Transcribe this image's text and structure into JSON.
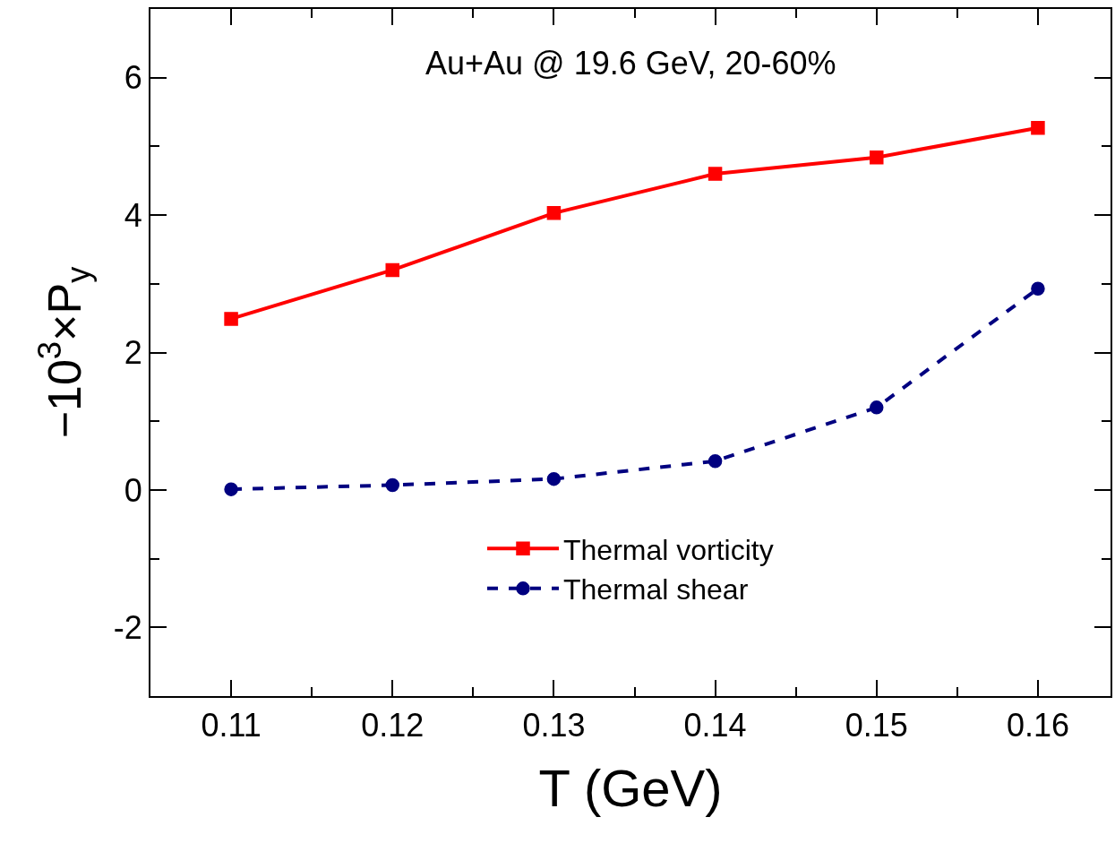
{
  "chart_data": {
    "type": "line",
    "xlabel": "T (GeV)",
    "ylabel": "−10$^{3}$×P$_{y}$",
    "annotations": [
      "Au+Au @ 19.6 GeV, 20-60%"
    ],
    "x": [
      0.11,
      0.12,
      0.13,
      0.14,
      0.15,
      0.16
    ],
    "series": [
      {
        "name": "Thermal vorticity",
        "color": "#ff0000",
        "marker": "square",
        "line_style": "solid",
        "values": [
          2.49,
          3.2,
          4.03,
          4.6,
          4.84,
          5.27
        ]
      },
      {
        "name": "Thermal shear",
        "color": "#000080",
        "marker": "circle",
        "line_style": "dashed",
        "values": [
          0.01,
          0.07,
          0.16,
          0.42,
          1.2,
          2.93
        ]
      }
    ],
    "xlim": [
      0.105,
      0.1645
    ],
    "xticks": [
      0.11,
      0.12,
      0.13,
      0.14,
      0.15,
      0.16,
      {
        "value": 0.105,
        "label": null
      },
      {
        "value": 0.115,
        "label": null
      },
      {
        "value": 0.125,
        "label": null
      },
      {
        "value": 0.135,
        "label": null
      },
      {
        "value": 0.145,
        "label": null
      },
      {
        "value": 0.155,
        "label": null
      }
    ],
    "ylim": [
      -3,
      7
    ],
    "yticks": [
      -2,
      0,
      2,
      4,
      6,
      {
        "value": -1,
        "label": null
      },
      {
        "value": 1,
        "label": null
      },
      {
        "value": 3,
        "label": null
      },
      {
        "value": 5,
        "label": null
      }
    ],
    "grid": false,
    "legend": "bottom"
  }
}
